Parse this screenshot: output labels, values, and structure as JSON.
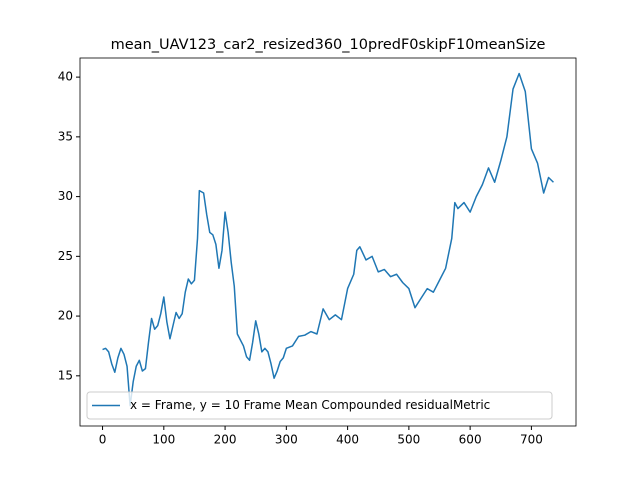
{
  "chart_data": {
    "type": "line",
    "title": "mean_UAV123_car2_resized360_10predF0skipF10meanSize",
    "x": [
      0,
      5,
      10,
      15,
      20,
      25,
      30,
      35,
      40,
      45,
      50,
      55,
      60,
      65,
      70,
      75,
      80,
      85,
      90,
      95,
      100,
      105,
      110,
      115,
      120,
      125,
      130,
      135,
      140,
      145,
      150,
      155,
      158,
      165,
      170,
      175,
      180,
      185,
      190,
      195,
      200,
      205,
      210,
      215,
      220,
      225,
      230,
      235,
      240,
      245,
      250,
      255,
      260,
      265,
      270,
      275,
      280,
      285,
      290,
      295,
      300,
      310,
      320,
      330,
      340,
      350,
      360,
      370,
      380,
      390,
      400,
      410,
      415,
      420,
      430,
      440,
      450,
      460,
      470,
      480,
      490,
      500,
      510,
      520,
      530,
      540,
      550,
      560,
      570,
      575,
      580,
      590,
      600,
      610,
      620,
      630,
      640,
      650,
      660,
      670,
      680,
      690,
      700,
      710,
      720,
      728,
      736
    ],
    "series": [
      {
        "name": "x = Frame, y = 10 Frame Mean Compounded residualMetric",
        "color": "#1f77b4",
        "values": [
          17.2,
          17.3,
          17.0,
          16.0,
          15.3,
          16.5,
          17.3,
          16.8,
          15.8,
          12.5,
          14.5,
          15.8,
          16.3,
          15.4,
          15.6,
          17.8,
          19.8,
          18.9,
          19.2,
          20.2,
          21.6,
          19.5,
          18.1,
          19.2,
          20.3,
          19.8,
          20.2,
          22.0,
          23.1,
          22.7,
          23.0,
          26.5,
          30.5,
          30.3,
          28.5,
          27.0,
          26.8,
          26.0,
          24.0,
          25.5,
          28.7,
          27.0,
          24.5,
          22.5,
          18.5,
          18.0,
          17.5,
          16.6,
          16.3,
          17.8,
          19.6,
          18.5,
          17.0,
          17.3,
          17.0,
          16.0,
          14.8,
          15.4,
          16.2,
          16.5,
          17.3,
          17.5,
          18.3,
          18.4,
          18.7,
          18.5,
          20.6,
          19.7,
          20.1,
          19.7,
          22.3,
          23.5,
          25.5,
          25.8,
          24.7,
          25.0,
          23.7,
          23.9,
          23.3,
          23.5,
          22.8,
          22.3,
          20.7,
          21.5,
          22.3,
          22.0,
          23.0,
          24.0,
          26.5,
          29.5,
          29.0,
          29.5,
          28.7,
          30.0,
          31.0,
          32.4,
          31.2,
          33.0,
          35.0,
          39.0,
          40.3,
          38.8,
          34.0,
          32.8,
          30.3,
          31.6,
          31.2
        ]
      }
    ],
    "xlim": [
      -36.8,
      772.8
    ],
    "ylim": [
      10.8,
      41.6
    ],
    "xticks": [
      0,
      100,
      200,
      300,
      400,
      500,
      600,
      700
    ],
    "yticks": [
      15,
      20,
      25,
      30,
      35,
      40
    ],
    "legend": "lower left"
  }
}
